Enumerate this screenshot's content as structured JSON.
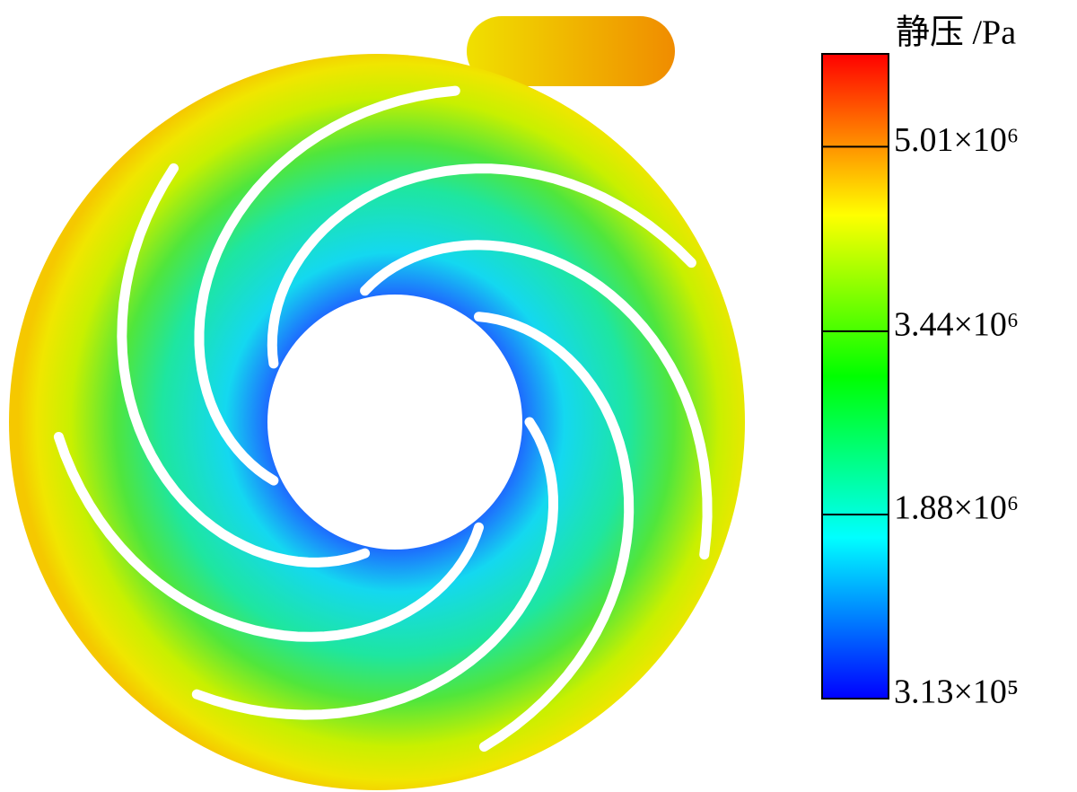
{
  "chart_data": {
    "type": "contour",
    "colorbar": {
      "title": "静压 /Pa",
      "lim": [
        313000,
        5800000
      ],
      "ticks": [
        {
          "value": 313000,
          "label": "3.13×10⁵"
        },
        {
          "value": 1880000,
          "label": "1.88×10⁶"
        },
        {
          "value": 3440000,
          "label": "3.44×10⁶"
        },
        {
          "value": 5010000,
          "label": "5.01×10⁶"
        }
      ],
      "colors": [
        "#0000ff",
        "#00ffff",
        "#00ff00",
        "#ffff00",
        "#ff0000"
      ]
    }
  }
}
